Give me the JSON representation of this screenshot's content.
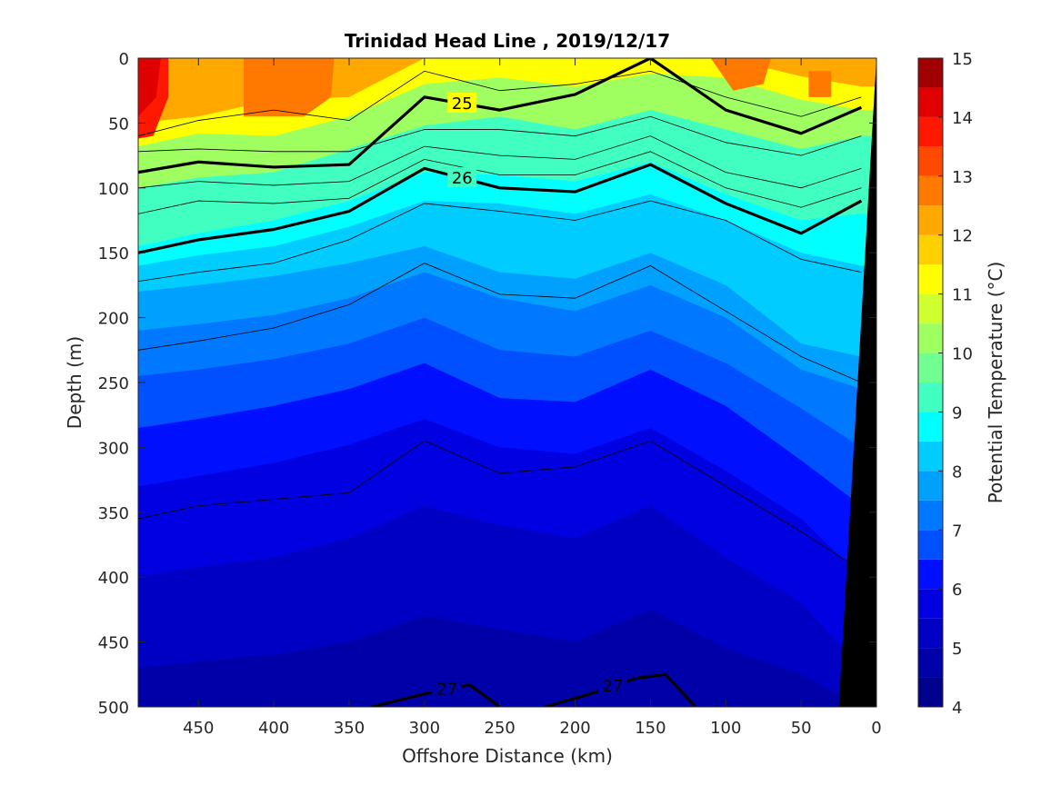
{
  "chart_data": {
    "type": "heatmap",
    "title": "Trinidad Head Line , 2019/12/17",
    "xlabel": "Offshore Distance (km)",
    "ylabel": "Depth (m)",
    "colorbar_label": "Potential Temperature (°C)",
    "xlim": [
      490,
      0
    ],
    "ylim": [
      0,
      500
    ],
    "x_reversed": true,
    "y_reversed": true,
    "x_ticks": [
      450,
      400,
      350,
      300,
      250,
      200,
      150,
      100,
      50,
      0
    ],
    "y_ticks": [
      0,
      50,
      100,
      150,
      200,
      250,
      300,
      350,
      400,
      450,
      500
    ],
    "colorbar_ticks": [
      4,
      5,
      6,
      7,
      8,
      9,
      10,
      11,
      12,
      13,
      14,
      15
    ],
    "color_levels": [
      {
        "from": 4.0,
        "to": 4.5,
        "color": "#00008F"
      },
      {
        "from": 4.5,
        "to": 5.0,
        "color": "#0000A8"
      },
      {
        "from": 5.0,
        "to": 5.5,
        "color": "#0000C4"
      },
      {
        "from": 5.5,
        "to": 6.0,
        "color": "#0000E0"
      },
      {
        "from": 6.0,
        "to": 6.5,
        "color": "#0010FF"
      },
      {
        "from": 6.5,
        "to": 7.0,
        "color": "#0050FF"
      },
      {
        "from": 7.0,
        "to": 7.5,
        "color": "#0078FF"
      },
      {
        "from": 7.5,
        "to": 8.0,
        "color": "#00A0FF"
      },
      {
        "from": 8.0,
        "to": 8.5,
        "color": "#00CCFF"
      },
      {
        "from": 8.5,
        "to": 9.0,
        "color": "#00FFFF"
      },
      {
        "from": 9.0,
        "to": 9.5,
        "color": "#40FFC0"
      },
      {
        "from": 9.5,
        "to": 10.0,
        "color": "#70FF90"
      },
      {
        "from": 10.0,
        "to": 10.5,
        "color": "#A0FF60"
      },
      {
        "from": 10.5,
        "to": 11.0,
        "color": "#D0FF30"
      },
      {
        "from": 11.0,
        "to": 11.5,
        "color": "#FFFF00"
      },
      {
        "from": 11.5,
        "to": 12.0,
        "color": "#FFD000"
      },
      {
        "from": 12.0,
        "to": 12.5,
        "color": "#FFA800"
      },
      {
        "from": 12.5,
        "to": 13.0,
        "color": "#FF7800"
      },
      {
        "from": 13.0,
        "to": 13.5,
        "color": "#FF4800"
      },
      {
        "from": 13.5,
        "to": 14.0,
        "color": "#FF1800"
      },
      {
        "from": 14.0,
        "to": 14.5,
        "color": "#E00000"
      },
      {
        "from": 14.5,
        "to": 15.0,
        "color": "#A00000"
      }
    ],
    "isotherm_depths": {
      "x": [
        490,
        450,
        400,
        350,
        300,
        250,
        200,
        150,
        100,
        50,
        10
      ],
      "series": [
        {
          "temperature": 12,
          "values": [
            50,
            45,
            32,
            30,
            0,
            0,
            0,
            0,
            0,
            14,
            22
          ]
        },
        {
          "temperature": 11,
          "values": [
            68,
            58,
            60,
            45,
            20,
            15,
            22,
            12,
            15,
            32,
            40
          ]
        },
        {
          "temperature": 10,
          "values": [
            100,
            92,
            88,
            70,
            52,
            45,
            55,
            40,
            55,
            70,
            60
          ]
        },
        {
          "temperature": 9,
          "values": [
            145,
            135,
            125,
            110,
            88,
            90,
            95,
            80,
            105,
            125,
            120
          ]
        },
        {
          "temperature": 8.5,
          "values": [
            160,
            152,
            145,
            130,
            110,
            112,
            120,
            105,
            125,
            150,
            160
          ]
        },
        {
          "temperature": 8,
          "values": [
            180,
            175,
            168,
            158,
            145,
            165,
            170,
            150,
            175,
            220,
            230
          ]
        },
        {
          "temperature": 7.5,
          "values": [
            210,
            205,
            198,
            185,
            165,
            185,
            195,
            175,
            200,
            240,
            255
          ]
        },
        {
          "temperature": 7,
          "values": [
            245,
            240,
            232,
            220,
            200,
            225,
            230,
            210,
            235,
            270,
            300
          ]
        },
        {
          "temperature": 6.5,
          "values": [
            285,
            278,
            268,
            255,
            235,
            262,
            265,
            240,
            268,
            310,
            345
          ]
        },
        {
          "temperature": 6,
          "values": [
            330,
            322,
            312,
            298,
            278,
            300,
            305,
            285,
            318,
            355,
            400
          ]
        },
        {
          "temperature": 5.5,
          "values": [
            400,
            392,
            385,
            370,
            345,
            360,
            370,
            345,
            385,
            420,
            470
          ]
        },
        {
          "temperature": 5,
          "values": [
            470,
            465,
            460,
            450,
            430,
            440,
            450,
            425,
            455,
            475,
            500
          ]
        }
      ]
    },
    "contours": [
      {
        "label": "25",
        "depth": [
          88,
          80,
          84,
          82,
          30,
          40,
          28,
          0,
          40,
          58,
          38
        ],
        "x": [
          490,
          450,
          400,
          350,
          300,
          250,
          200,
          150,
          100,
          50,
          10
        ]
      },
      {
        "label": "26",
        "depth": [
          150,
          140,
          132,
          118,
          85,
          100,
          103,
          82,
          112,
          135,
          110
        ],
        "x": [
          490,
          450,
          400,
          350,
          300,
          250,
          200,
          150,
          100,
          50,
          10
        ]
      },
      {
        "label": "27",
        "depth": [
          500,
          490,
          483,
          500
        ],
        "x": [
          335,
          300,
          270,
          250
        ]
      },
      {
        "label": "27",
        "depth": [
          500,
          490,
          478,
          475,
          500
        ],
        "x": [
          220,
          190,
          160,
          140,
          120
        ]
      }
    ],
    "thin_contours": [
      {
        "x": [
          490,
          450,
          400,
          350,
          300,
          250,
          200,
          150,
          100,
          50,
          10
        ],
        "depth": [
          60,
          48,
          40,
          48,
          10,
          25,
          20,
          10,
          30,
          45,
          30
        ]
      },
      {
        "x": [
          490,
          450,
          400,
          350,
          300,
          250,
          200,
          150,
          100,
          50,
          10
        ],
        "depth": [
          72,
          70,
          72,
          72,
          55,
          55,
          60,
          45,
          65,
          75,
          60
        ]
      },
      {
        "x": [
          490,
          450,
          400,
          350,
          300,
          250,
          200,
          150,
          100,
          50,
          10
        ],
        "depth": [
          100,
          95,
          98,
          95,
          68,
          75,
          78,
          60,
          88,
          100,
          85
        ]
      },
      {
        "x": [
          490,
          450,
          400,
          350,
          300,
          250,
          200,
          150,
          100,
          50,
          10
        ],
        "depth": [
          120,
          110,
          112,
          108,
          78,
          90,
          90,
          72,
          100,
          115,
          100
        ]
      },
      {
        "x": [
          490,
          450,
          400,
          350,
          300,
          250,
          200,
          150,
          100,
          50,
          10
        ],
        "depth": [
          172,
          165,
          158,
          140,
          112,
          118,
          125,
          110,
          125,
          155,
          165
        ]
      },
      {
        "x": [
          490,
          450,
          400,
          350,
          300,
          250,
          200,
          150,
          100,
          50,
          10
        ],
        "depth": [
          225,
          218,
          208,
          190,
          158,
          182,
          185,
          160,
          195,
          230,
          250
        ]
      },
      {
        "x": [
          490,
          450,
          400,
          350,
          300,
          250,
          200,
          150,
          100,
          50,
          10
        ],
        "depth": [
          355,
          345,
          340,
          335,
          295,
          320,
          315,
          295,
          330,
          365,
          395
        ]
      }
    ],
    "bathymetry_depth_at_x": {
      "x": [
        25,
        0
      ],
      "depth": [
        500,
        0
      ]
    }
  }
}
